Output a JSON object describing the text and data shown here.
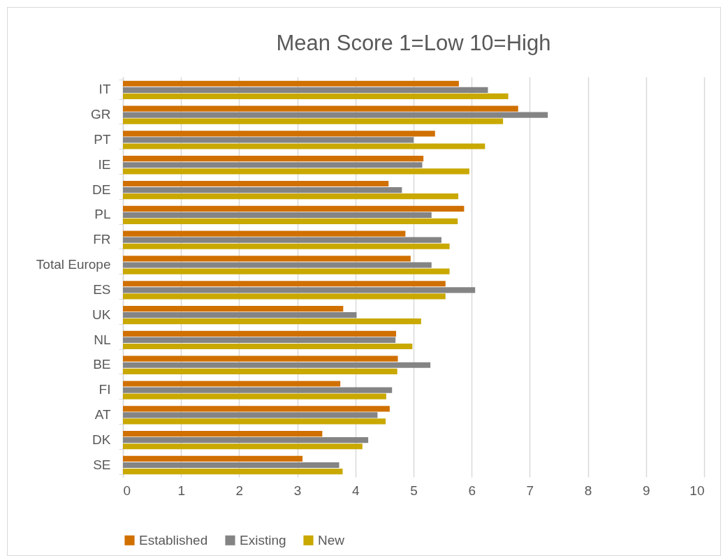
{
  "chart_data": {
    "type": "bar",
    "orientation": "horizontal",
    "title": "Mean Score 1=Low 10=High",
    "categories": [
      "IT",
      "GR",
      "PT",
      "IE",
      "DE",
      "PL",
      "FR",
      "Total Europe",
      "ES",
      "UK",
      "NL",
      "BE",
      "FI",
      "AT",
      "DK",
      "SE"
    ],
    "series": [
      {
        "name": "Established",
        "color": "#d07000",
        "values": [
          5.78,
          6.8,
          5.37,
          5.17,
          4.57,
          5.87,
          4.86,
          4.95,
          5.55,
          3.79,
          4.7,
          4.73,
          3.74,
          4.59,
          3.43,
          3.09
        ]
      },
      {
        "name": "Existing",
        "color": "#848484",
        "values": [
          6.28,
          7.31,
          5.0,
          5.15,
          4.8,
          5.31,
          5.48,
          5.31,
          6.06,
          4.02,
          4.69,
          5.29,
          4.63,
          4.38,
          4.22,
          3.72
        ]
      },
      {
        "name": "New",
        "color": "#c9a800",
        "values": [
          6.63,
          6.54,
          6.23,
          5.96,
          5.77,
          5.76,
          5.62,
          5.62,
          5.55,
          5.13,
          4.98,
          4.72,
          4.53,
          4.52,
          4.12,
          3.78
        ]
      }
    ],
    "xlim": [
      0,
      10
    ],
    "xticks": [
      0,
      1,
      2,
      3,
      4,
      5,
      6,
      7,
      8,
      9,
      10
    ],
    "grid": "x",
    "legend": "bottom"
  }
}
